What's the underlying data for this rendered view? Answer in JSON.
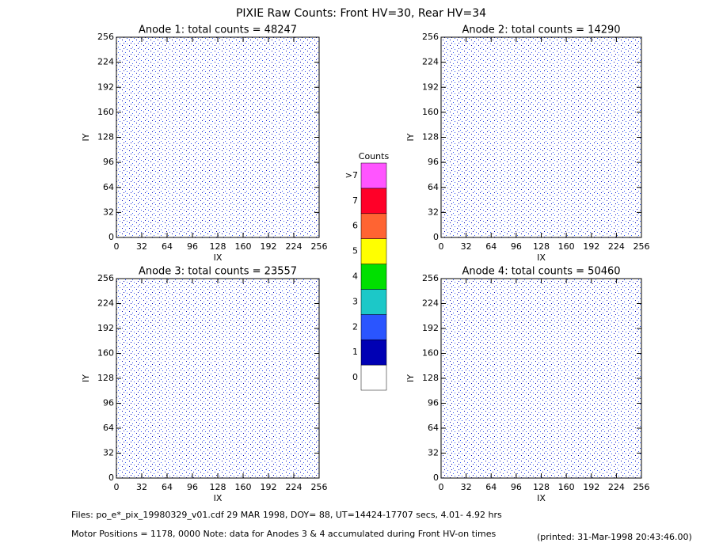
{
  "title": "PIXIE Raw Counts:  Front HV=30, Rear HV=34",
  "chart_data": [
    {
      "type": "heatmap",
      "title": "Anode 1: total counts = 48247",
      "x_label": "IX",
      "y_label": "IY",
      "xlim": [
        0,
        256
      ],
      "ylim": [
        0,
        256
      ],
      "xticks": [
        0,
        32,
        64,
        96,
        128,
        160,
        192,
        224,
        256
      ],
      "yticks": [
        0,
        32,
        64,
        96,
        128,
        160,
        192,
        224,
        256
      ]
    },
    {
      "type": "heatmap",
      "title": "Anode 2: total counts = 14290",
      "x_label": "IX",
      "y_label": "IY",
      "xlim": [
        0,
        256
      ],
      "ylim": [
        0,
        256
      ],
      "xticks": [
        0,
        32,
        64,
        96,
        128,
        160,
        192,
        224,
        256
      ],
      "yticks": [
        0,
        32,
        64,
        96,
        128,
        160,
        192,
        224,
        256
      ]
    },
    {
      "type": "heatmap",
      "title": "Anode 3: total counts = 23557",
      "x_label": "IX",
      "y_label": "IY",
      "xlim": [
        0,
        256
      ],
      "ylim": [
        0,
        256
      ],
      "xticks": [
        0,
        32,
        64,
        96,
        128,
        160,
        192,
        224,
        256
      ],
      "yticks": [
        0,
        32,
        64,
        96,
        128,
        160,
        192,
        224,
        256
      ]
    },
    {
      "type": "heatmap",
      "title": "Anode 4: total counts = 50460",
      "x_label": "IX",
      "y_label": "IY",
      "xlim": [
        0,
        256
      ],
      "ylim": [
        0,
        256
      ],
      "xticks": [
        0,
        32,
        64,
        96,
        128,
        160,
        192,
        224,
        256
      ],
      "yticks": [
        0,
        32,
        64,
        96,
        128,
        160,
        192,
        224,
        256
      ]
    }
  ],
  "colorbar": {
    "title": "Counts",
    "ticks": [
      0,
      1,
      2,
      3,
      4,
      5,
      6,
      7,
      {
        "value": 8,
        "label": ">7"
      }
    ],
    "colors": [
      "#ffffff",
      "#0000b4",
      "#2a55ff",
      "#1cc8c8",
      "#00e000",
      "#ffff00",
      "#ff6432",
      "#ff0028",
      "#ff55ff"
    ]
  },
  "footer": {
    "files": "Files: po_e*_pix_19980329_v01.cdf    29 MAR 1998, DOY= 88, UT=14424-17707 secs,  4.01- 4.92 hrs",
    "motor": "Motor Positions = 1178, 0000   Note: data for Anodes 3 & 4 accumulated during Front HV-on times",
    "printed": "(printed: 31-Mar-1998 20:43:46.00)"
  }
}
